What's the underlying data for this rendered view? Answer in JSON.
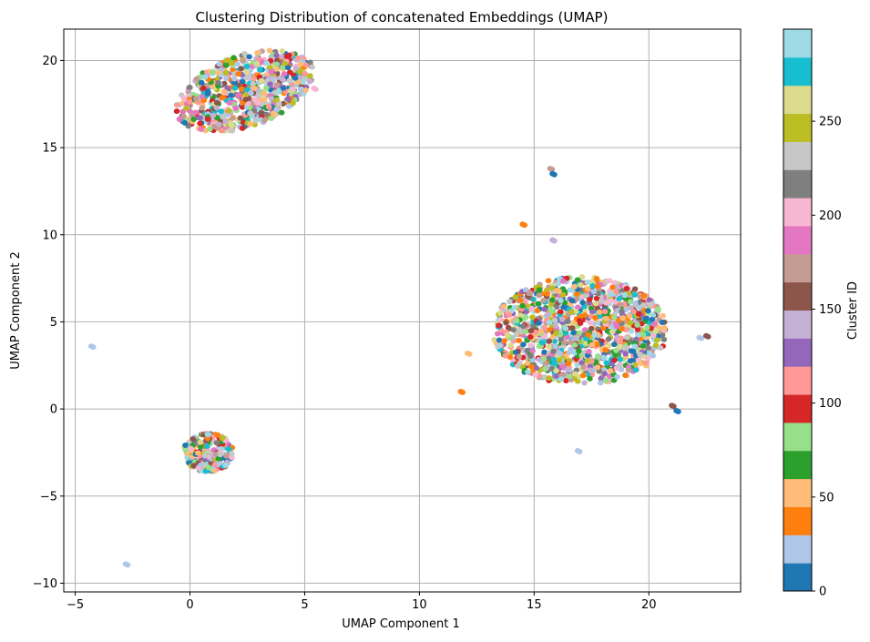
{
  "chart_data": {
    "type": "scatter",
    "title": "Clustering Distribution of concatenated Embeddings (UMAP)",
    "xlabel": "UMAP Component 1",
    "ylabel": "UMAP Component 2",
    "xlim": [
      -5.5,
      24.0
    ],
    "ylim": [
      -10.5,
      21.8
    ],
    "xticks": [
      -5,
      0,
      5,
      10,
      15,
      20
    ],
    "yticks": [
      -10,
      -5,
      0,
      5,
      10,
      15,
      20
    ],
    "grid": true,
    "colorbar": {
      "label": "Cluster ID",
      "range": [
        0,
        299
      ],
      "ticks": [
        0,
        50,
        100,
        150,
        200,
        250
      ],
      "colormap": "tab20",
      "colors": [
        "#1f77b4",
        "#aec7e8",
        "#ff7f0e",
        "#ffbb78",
        "#2ca02c",
        "#98df8a",
        "#d62728",
        "#ff9896",
        "#9467bd",
        "#c5b0d5",
        "#8c564b",
        "#c49c94",
        "#e377c2",
        "#f7b6d2",
        "#7f7f7f",
        "#c7c7c7",
        "#bcbd22",
        "#dbdb8d",
        "#17becf",
        "#9edae5"
      ]
    },
    "clusters_regions": [
      {
        "region": "upper-left",
        "x_range": [
          -0.6,
          5.4
        ],
        "y_range": [
          16.1,
          20.4
        ]
      },
      {
        "region": "lower-left",
        "x_range": [
          -0.3,
          1.9
        ],
        "y_range": [
          -3.6,
          -1.4
        ]
      },
      {
        "region": "right-main",
        "x_range": [
          13.2,
          20.8
        ],
        "y_range": [
          1.4,
          7.6
        ]
      }
    ],
    "isolated_points": [
      {
        "x": -4.3,
        "y": 3.6,
        "cluster": 1
      },
      {
        "x": -2.8,
        "y": -8.9,
        "cluster": 1
      },
      {
        "x": 11.8,
        "y": 1.0,
        "cluster": 2
      },
      {
        "x": 12.1,
        "y": 3.2,
        "cluster": 3
      },
      {
        "x": 14.5,
        "y": 10.6,
        "cluster": 2
      },
      {
        "x": 15.7,
        "y": 13.8,
        "cluster": 11
      },
      {
        "x": 15.8,
        "y": 13.5,
        "cluster": 0
      },
      {
        "x": 15.8,
        "y": 9.7,
        "cluster": 9
      },
      {
        "x": 16.0,
        "y": 6.8,
        "cluster": 3
      },
      {
        "x": 16.9,
        "y": -2.4,
        "cluster": 1
      },
      {
        "x": 21.0,
        "y": 0.2,
        "cluster": 10
      },
      {
        "x": 21.2,
        "y": -0.1,
        "cluster": 0
      },
      {
        "x": 22.2,
        "y": 4.1,
        "cluster": 1
      },
      {
        "x": 22.5,
        "y": 4.2,
        "cluster": 10
      },
      {
        "x": 5.4,
        "y": 18.4,
        "cluster": 13
      }
    ]
  }
}
